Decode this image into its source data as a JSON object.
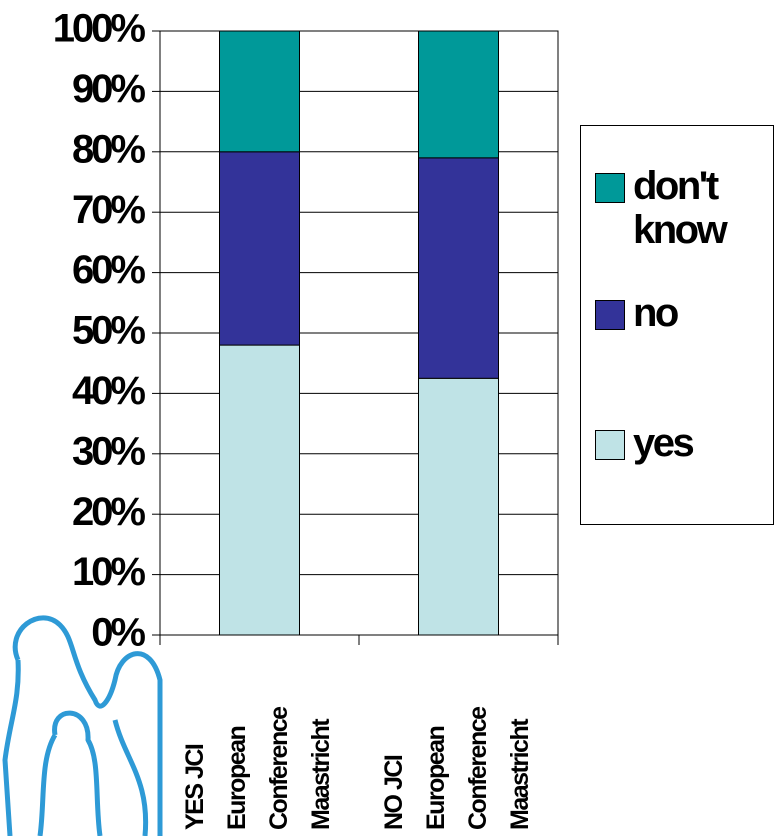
{
  "chart_data": {
    "type": "stacked_bar",
    "categories": [
      [
        "YES JCI",
        "European",
        "Conference",
        "Maastricht"
      ],
      [
        "NO JCI",
        "European",
        "Conference",
        "Maastricht"
      ]
    ],
    "series": [
      {
        "name": "yes",
        "color": "#bfe3e6",
        "values": [
          48,
          42.5
        ]
      },
      {
        "name": "no",
        "color": "#333399",
        "values": [
          32,
          36.5
        ]
      },
      {
        "name": "don't know",
        "color": "#009999",
        "values": [
          20,
          21
        ]
      }
    ],
    "ylim": [
      0,
      100
    ],
    "yticks": [
      {
        "value": 0,
        "label": "0%"
      },
      {
        "value": 10,
        "label": "10%"
      },
      {
        "value": 20,
        "label": "20%"
      },
      {
        "value": 30,
        "label": "30%"
      },
      {
        "value": 40,
        "label": "40%"
      },
      {
        "value": 50,
        "label": "50%"
      },
      {
        "value": 60,
        "label": "60%"
      },
      {
        "value": 70,
        "label": "70%"
      },
      {
        "value": 80,
        "label": "80%"
      },
      {
        "value": 90,
        "label": "90%"
      },
      {
        "value": 100,
        "label": "100%"
      }
    ],
    "grid": true,
    "legend": "right"
  }
}
